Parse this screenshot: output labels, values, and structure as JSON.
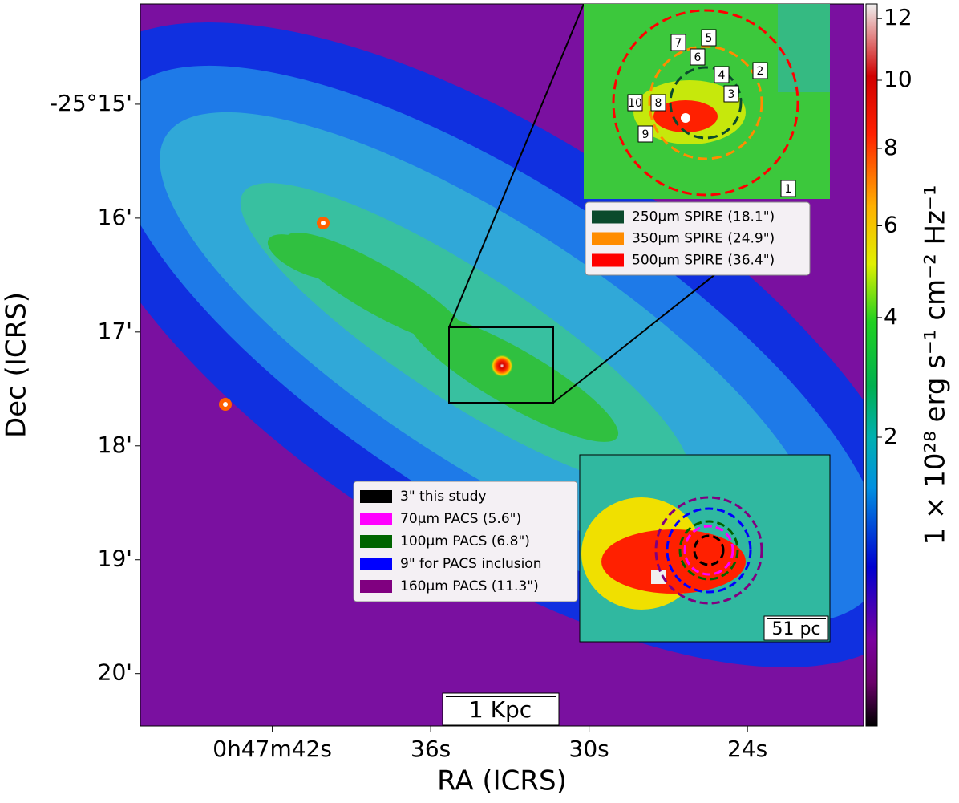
{
  "chart_data": {
    "type": "image",
    "x_label": "RA (ICRS)",
    "y_label": "Dec (ICRS)",
    "xlim": [
      47.0,
      19.6
    ],
    "xticks": [
      {
        "value": 42,
        "label": "0h47m42s"
      },
      {
        "value": 36,
        "label": "36s"
      },
      {
        "value": 30,
        "label": "30s"
      },
      {
        "value": 24,
        "label": "24s"
      }
    ],
    "ylim": [
      14.12,
      20.46
    ],
    "yticks": [
      {
        "value": 15,
        "label": "-25°15'"
      },
      {
        "value": 16,
        "label": "16'"
      },
      {
        "value": 17,
        "label": "17'"
      },
      {
        "value": 18,
        "label": "18'"
      },
      {
        "value": 19,
        "label": "19'"
      },
      {
        "value": 20,
        "label": "20'"
      }
    ],
    "colorbar_label": "1 × 10²⁸ erg s⁻¹ cm⁻² Hz⁻¹",
    "colorbar_scale": "sqrt",
    "clim": [
      0,
      12.5
    ],
    "cticks": [
      2,
      4,
      6,
      8,
      10,
      12
    ],
    "scale_bar": "1 Kpc",
    "inset_scale_bar": "51 pc",
    "sources": [
      "1",
      "2",
      "3",
      "4",
      "5",
      "6",
      "7",
      "8",
      "9",
      "10"
    ],
    "legend_spire": [
      {
        "name": "250µm SPIRE (18.1\")",
        "color": "#0b4a2c"
      },
      {
        "name": "350µm SPIRE (24.9\")",
        "color": "#ff8c00"
      },
      {
        "name": "500µm SPIRE (36.4\")",
        "color": "#ff0000"
      }
    ],
    "legend_pacs": [
      {
        "name": "3\" this study",
        "color": "#000000"
      },
      {
        "name": "70µm PACS (5.6\")",
        "color": "#ff00ff"
      },
      {
        "name": "100µm PACS (6.8\")",
        "color": "#006400"
      },
      {
        "name": "9\" for PACS inclusion",
        "color": "#0000ff"
      },
      {
        "name": "160µm PACS (11.3\")",
        "color": "#800080"
      }
    ]
  }
}
